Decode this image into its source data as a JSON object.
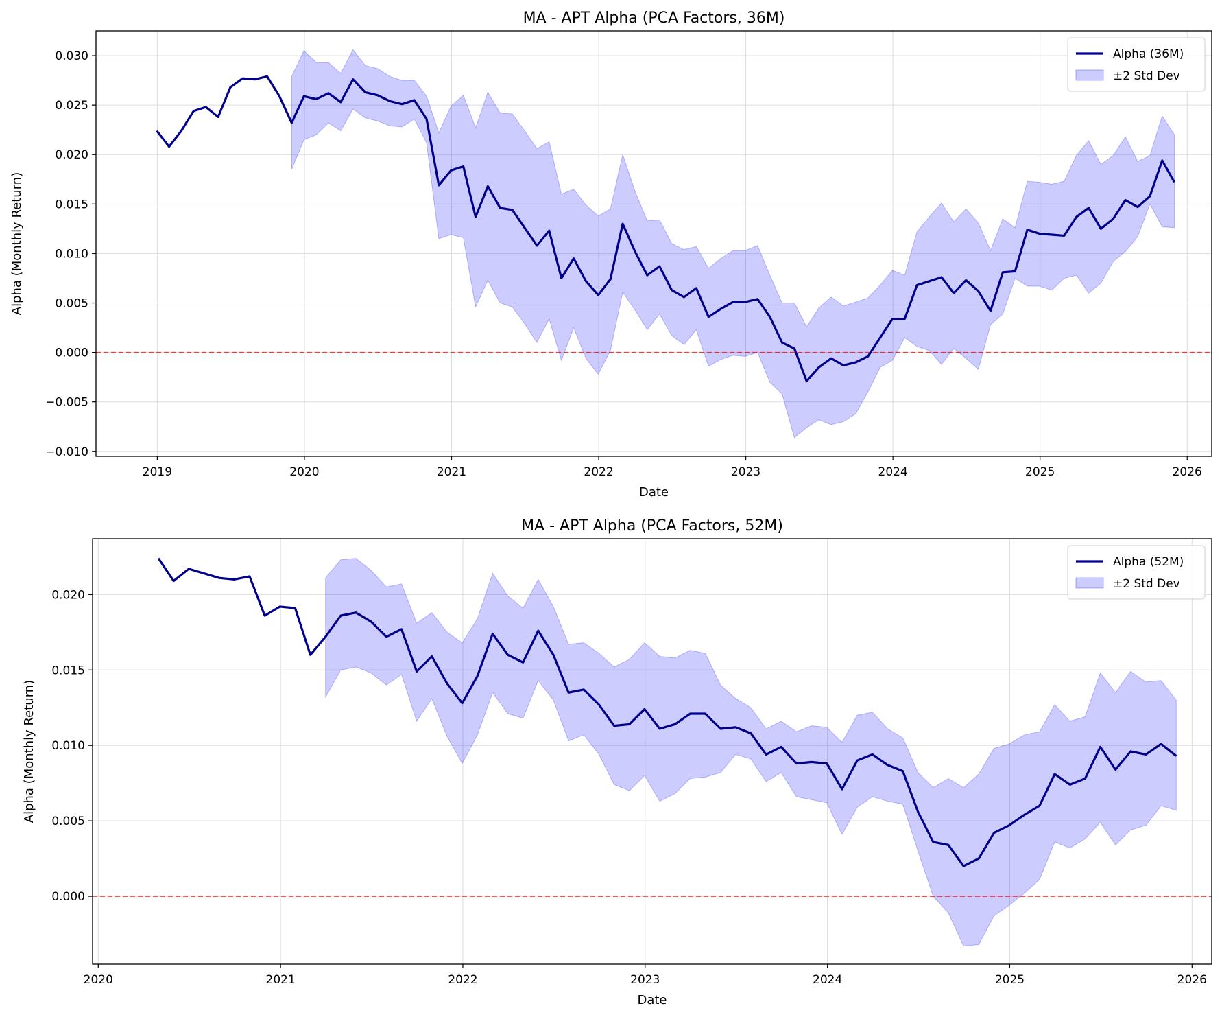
{
  "chart_data": [
    {
      "type": "line",
      "title": "MA - APT Alpha (PCA Factors, 36M)",
      "xlabel": "Date",
      "ylabel": "Alpha (Monthly Return)",
      "xlim": [
        "2018-08-01",
        "2026-03-01"
      ],
      "ylim": [
        -0.0105,
        0.0325
      ],
      "x_ticks": [
        "2019",
        "2020",
        "2021",
        "2022",
        "2023",
        "2024",
        "2025",
        "2026"
      ],
      "y_ticks": [
        -0.01,
        -0.005,
        0.0,
        0.005,
        0.01,
        0.015,
        0.02,
        0.025,
        0.03
      ],
      "y_tick_labels": [
        "−0.010",
        "−0.005",
        "0.000",
        "0.005",
        "0.010",
        "0.015",
        "0.020",
        "0.025",
        "0.030"
      ],
      "grid": true,
      "legend_position": "top-right",
      "zero_line": true,
      "start": "2018-12",
      "series": [
        {
          "name": "Alpha (36M)",
          "color": "#00008B",
          "values": [
            0.0224,
            0.0208,
            0.0224,
            0.0244,
            0.0248,
            0.0238,
            0.0268,
            0.0277,
            0.0276,
            0.0279,
            0.0259,
            0.0232,
            0.0259,
            0.0256,
            0.0262,
            0.0253,
            0.0276,
            0.0263,
            0.026,
            0.0254,
            0.0251,
            0.0255,
            0.0236,
            0.0169,
            0.0184,
            0.0188,
            0.0137,
            0.0168,
            0.0146,
            0.0144,
            0.0126,
            0.0108,
            0.0123,
            0.0075,
            0.0095,
            0.0072,
            0.0058,
            0.0074,
            0.013,
            0.0102,
            0.0078,
            0.0087,
            0.0063,
            0.0056,
            0.0065,
            0.0036,
            0.0044,
            0.0051,
            0.0051,
            0.0054,
            0.0036,
            0.001,
            0.0004,
            -0.0029,
            -0.0015,
            -0.0006,
            -0.0013,
            -0.001,
            -0.0004,
            0.0015,
            0.0034,
            0.0034,
            0.0068,
            0.0072,
            0.0076,
            0.006,
            0.0073,
            0.0062,
            0.0042,
            0.0081,
            0.0082,
            0.0124,
            0.012,
            0.0119,
            0.0118,
            0.0137,
            0.0146,
            0.0125,
            0.0135,
            0.0154,
            0.0147,
            0.0158,
            0.0194,
            0.0172
          ]
        },
        {
          "name": "±2 Std Dev",
          "color": "#0000FF",
          "band_start": "2019-11",
          "upper": [
            0.0279,
            0.0305,
            0.0293,
            0.0293,
            0.0282,
            0.0306,
            0.029,
            0.0287,
            0.0279,
            0.0275,
            0.0275,
            0.0259,
            0.0222,
            0.0249,
            0.026,
            0.0227,
            0.0263,
            0.0242,
            0.0241,
            0.0224,
            0.0206,
            0.0213,
            0.016,
            0.0165,
            0.0149,
            0.0138,
            0.0145,
            0.02,
            0.0163,
            0.0133,
            0.0134,
            0.011,
            0.0104,
            0.0107,
            0.0085,
            0.0095,
            0.0103,
            0.0103,
            0.0108,
            0.0078,
            0.005,
            0.005,
            0.0026,
            0.0045,
            0.0056,
            0.0047,
            0.0051,
            0.0055,
            0.0068,
            0.0083,
            0.0078,
            0.0122,
            0.0137,
            0.0151,
            0.0132,
            0.0145,
            0.0131,
            0.0103,
            0.0135,
            0.0126,
            0.0173,
            0.0172,
            0.017,
            0.0173,
            0.0199,
            0.0214,
            0.019,
            0.0199,
            0.0218,
            0.0193,
            0.0199,
            0.0239,
            0.022
          ],
          "lower": [
            0.0185,
            0.0215,
            0.022,
            0.0232,
            0.0224,
            0.0246,
            0.0237,
            0.0234,
            0.0229,
            0.0228,
            0.0236,
            0.0212,
            0.0115,
            0.0119,
            0.0116,
            0.0046,
            0.0073,
            0.005,
            0.0046,
            0.0029,
            0.001,
            0.0034,
            -0.0008,
            0.0025,
            -0.0006,
            -0.0022,
            0.0002,
            0.0061,
            0.0043,
            0.0023,
            0.0039,
            0.0017,
            0.0008,
            0.0023,
            -0.0014,
            -0.0007,
            -0.0003,
            -0.0004,
            0.0,
            -0.003,
            -0.0042,
            -0.0086,
            -0.0076,
            -0.0068,
            -0.0073,
            -0.007,
            -0.0062,
            -0.004,
            -0.0015,
            -0.0008,
            0.0015,
            0.0006,
            0.0002,
            -0.0012,
            0.0004,
            -0.0006,
            -0.0017,
            0.0028,
            0.0039,
            0.0075,
            0.0067,
            0.0067,
            0.0063,
            0.0075,
            0.0078,
            0.006,
            0.007,
            0.0092,
            0.0102,
            0.0117,
            0.015,
            0.0127,
            0.0126
          ]
        }
      ]
    },
    {
      "type": "line",
      "title": "MA - APT Alpha (PCA Factors, 52M)",
      "xlabel": "Date",
      "ylabel": "Alpha (Monthly Return)",
      "xlim": [
        "2019-12-20",
        "2026-02-10"
      ],
      "ylim": [
        -0.0045,
        0.0237
      ],
      "x_ticks": [
        "2020",
        "2021",
        "2022",
        "2023",
        "2024",
        "2025",
        "2026"
      ],
      "y_ticks": [
        0.0,
        0.005,
        0.01,
        0.015,
        0.02
      ],
      "y_tick_labels": [
        "0.000",
        "0.005",
        "0.010",
        "0.015",
        "0.020"
      ],
      "grid": true,
      "legend_position": "top-right",
      "zero_line": true,
      "start": "2020-04",
      "series": [
        {
          "name": "Alpha (52M)",
          "color": "#00008B",
          "values": [
            0.0224,
            0.0209,
            0.0217,
            0.0214,
            0.0211,
            0.021,
            0.0212,
            0.0186,
            0.0192,
            0.0191,
            0.016,
            0.0172,
            0.0186,
            0.0188,
            0.0182,
            0.0172,
            0.0177,
            0.0149,
            0.0159,
            0.0141,
            0.0128,
            0.0146,
            0.0174,
            0.016,
            0.0155,
            0.0176,
            0.016,
            0.0135,
            0.0137,
            0.0127,
            0.0113,
            0.0114,
            0.0124,
            0.0111,
            0.0114,
            0.0121,
            0.0121,
            0.0111,
            0.0112,
            0.0108,
            0.0094,
            0.0099,
            0.0088,
            0.0089,
            0.0088,
            0.0071,
            0.009,
            0.0094,
            0.0087,
            0.0083,
            0.0056,
            0.0036,
            0.0034,
            0.002,
            0.0025,
            0.0042,
            0.0047,
            0.0054,
            0.006,
            0.0081,
            0.0074,
            0.0078,
            0.0099,
            0.0084,
            0.0096,
            0.0094,
            0.0101,
            0.0093
          ]
        },
        {
          "name": "±2 Std Dev",
          "color": "#0000FF",
          "band_start": "2021-03",
          "upper": [
            0.0211,
            0.0223,
            0.0224,
            0.0216,
            0.0205,
            0.0207,
            0.0181,
            0.0188,
            0.0175,
            0.0168,
            0.0184,
            0.0214,
            0.0199,
            0.0191,
            0.021,
            0.0192,
            0.0167,
            0.0168,
            0.0161,
            0.0152,
            0.0157,
            0.0168,
            0.0159,
            0.0158,
            0.0163,
            0.0161,
            0.014,
            0.0131,
            0.0125,
            0.0111,
            0.0116,
            0.0109,
            0.0113,
            0.0112,
            0.0102,
            0.012,
            0.0122,
            0.0111,
            0.0105,
            0.0082,
            0.0072,
            0.0078,
            0.0072,
            0.0081,
            0.0098,
            0.0101,
            0.0107,
            0.0109,
            0.0127,
            0.0116,
            0.0119,
            0.0148,
            0.0135,
            0.0149,
            0.0142,
            0.0143,
            0.013
          ],
          "lower": [
            0.0132,
            0.015,
            0.0152,
            0.0148,
            0.014,
            0.0147,
            0.0116,
            0.0131,
            0.0106,
            0.0088,
            0.0107,
            0.0135,
            0.0121,
            0.0118,
            0.0143,
            0.013,
            0.0103,
            0.0107,
            0.0094,
            0.0074,
            0.007,
            0.008,
            0.0063,
            0.0068,
            0.0078,
            0.0079,
            0.0082,
            0.0094,
            0.0091,
            0.0076,
            0.0082,
            0.0066,
            0.0064,
            0.0062,
            0.0041,
            0.0059,
            0.0066,
            0.0063,
            0.0061,
            0.003,
            0.0,
            -0.0011,
            -0.0033,
            -0.0032,
            -0.0013,
            -0.0006,
            0.0002,
            0.0011,
            0.0036,
            0.0032,
            0.0038,
            0.0049,
            0.0034,
            0.0044,
            0.0047,
            0.006,
            0.0057
          ]
        }
      ]
    }
  ]
}
